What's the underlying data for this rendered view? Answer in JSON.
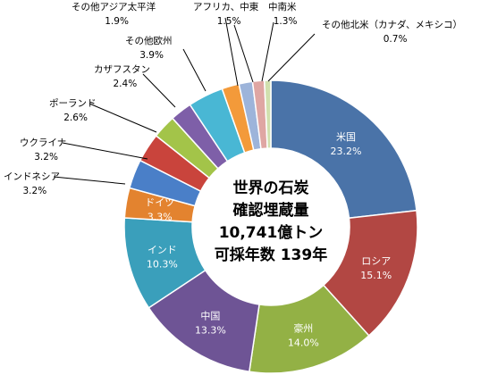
{
  "chart_data": {
    "type": "pie",
    "donut": true,
    "center_text": [
      "世界の石炭",
      "確認埋蔵量",
      "10,741億トン",
      "可採年数 139年"
    ],
    "unit": "%",
    "series": [
      {
        "name": "米国",
        "value_label": "23.2%",
        "value": 23.2,
        "color": "#4A73A8",
        "label_color": "#ffffff",
        "label_placement": "inside"
      },
      {
        "name": "ロシア",
        "value_label": "15.1%",
        "value": 15.1,
        "color": "#B24743",
        "label_color": "#ffffff",
        "label_placement": "inside"
      },
      {
        "name": "豪州",
        "value_label": "14.0%",
        "value": 14.0,
        "color": "#93B145",
        "label_color": "#ffffff",
        "label_placement": "inside"
      },
      {
        "name": "中国",
        "value_label": "13.3%",
        "value": 13.3,
        "color": "#6E5495",
        "label_color": "#ffffff",
        "label_placement": "inside"
      },
      {
        "name": "インド",
        "value_label": "10.3%",
        "value": 10.3,
        "color": "#3A9FBB",
        "label_color": "#ffffff",
        "label_placement": "inside"
      },
      {
        "name": "ドイツ",
        "value_label": "3.3%",
        "value": 3.3,
        "color": "#E3832F",
        "label_color": "#ffffff",
        "label_placement": "inside"
      },
      {
        "name": "インドネシア",
        "value_label": "3.2%",
        "value": 3.2,
        "color": "#4A7FC8",
        "label_color": "#000000",
        "label_placement": "outside"
      },
      {
        "name": "ウクライナ",
        "value_label": "3.2%",
        "value": 3.2,
        "color": "#C9443C",
        "label_color": "#000000",
        "label_placement": "outside"
      },
      {
        "name": "ポーランド",
        "value_label": "2.6%",
        "value": 2.6,
        "color": "#A3C449",
        "label_color": "#000000",
        "label_placement": "outside"
      },
      {
        "name": "カザフスタン",
        "value_label": "2.4%",
        "value": 2.4,
        "color": "#7E5FA8",
        "label_color": "#000000",
        "label_placement": "outside"
      },
      {
        "name": "その他欧州",
        "value_label": "3.9%",
        "value": 3.9,
        "color": "#49B7D4",
        "label_color": "#000000",
        "label_placement": "outside"
      },
      {
        "name": "その他アジア太平洋",
        "value_label": "1.9%",
        "value": 1.9,
        "color": "#F39A3A",
        "label_color": "#000000",
        "label_placement": "outside"
      },
      {
        "name": "アフリカ、中東",
        "value_label": "1.5%",
        "value": 1.5,
        "color": "#9DB4DA",
        "label_color": "#000000",
        "label_placement": "outside"
      },
      {
        "name": "中南米",
        "value_label": "1.3%",
        "value": 1.3,
        "color": "#DFA6A3",
        "label_color": "#000000",
        "label_placement": "outside"
      },
      {
        "name": "その他北米（カナダ、メキシコ）",
        "value_label": "0.7%",
        "value": 0.7,
        "color": "#D1E0AE",
        "label_color": "#000000",
        "label_placement": "outside"
      }
    ]
  }
}
